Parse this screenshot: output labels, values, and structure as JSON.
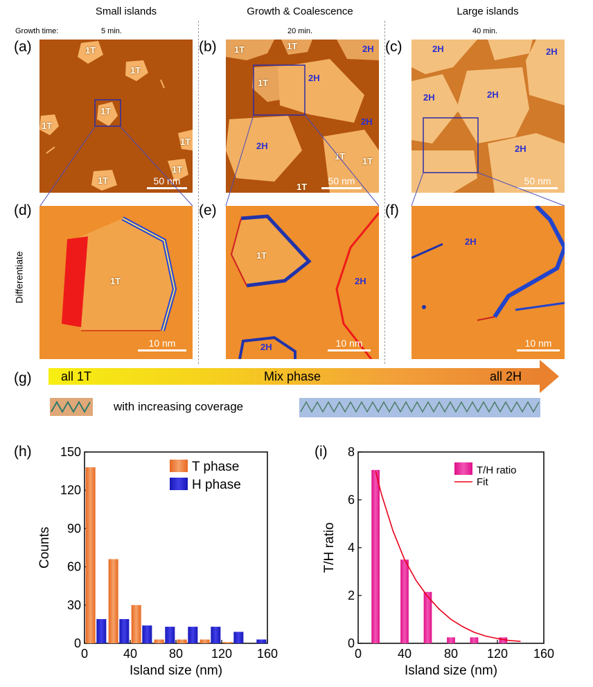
{
  "top": {
    "titles": [
      "Small islands",
      "Growth & Coalescence",
      "Large islands"
    ],
    "growth_time_label": "Growth time:",
    "times": [
      "5 min.",
      "20 min.",
      "40 min."
    ]
  },
  "panels": {
    "a": "(a)",
    "b": "(b)",
    "c": "(c)",
    "d": "(d)",
    "e": "(e)",
    "f": "(f)",
    "g": "(g)",
    "h": "(h)",
    "i": "(i)"
  },
  "side_label": "Differentiate",
  "labels": {
    "t1": "1T",
    "h2": "2H"
  },
  "scalebars": {
    "s50": "50 nm",
    "s10": "10 nm"
  },
  "phase_bar": {
    "left": "all 1T",
    "middle": "Mix phase",
    "right": "all 2H",
    "caption": "with increasing coverage"
  },
  "colors": {
    "t_phase": "#f4a26a",
    "h_phase": "#3f3ee8",
    "ratio": "#f255b3",
    "fit": "#e8001b"
  },
  "chart_data": [
    {
      "type": "bar",
      "xlabel": "Island size (nm)",
      "ylabel": "Counts",
      "xlim": [
        0,
        160
      ],
      "ylim": [
        0,
        150
      ],
      "xticks": [
        0,
        40,
        80,
        120,
        160
      ],
      "yticks": [
        0,
        30,
        60,
        90,
        120,
        150
      ],
      "legend": "top-right",
      "x": [
        10,
        30,
        50,
        70,
        90,
        110,
        130,
        150
      ],
      "series": [
        {
          "name": "T phase",
          "values": [
            138,
            66,
            30,
            3,
            3,
            3,
            1,
            0
          ]
        },
        {
          "name": "H phase",
          "values": [
            19,
            19,
            14,
            13,
            13,
            13,
            9,
            3
          ]
        }
      ]
    },
    {
      "type": "bar",
      "xlabel": "Island size (nm)",
      "ylabel": "T/H ratio",
      "xlim": [
        0,
        160
      ],
      "ylim": [
        0,
        8
      ],
      "xticks": [
        0,
        40,
        80,
        120,
        160
      ],
      "yticks": [
        0,
        2,
        4,
        6,
        8
      ],
      "legend": "top-right",
      "x": [
        15,
        40,
        60,
        80,
        100,
        125
      ],
      "series": [
        {
          "name": "T/H ratio",
          "values": [
            7.25,
            3.5,
            2.15,
            0.25,
            0.25,
            0.25
          ]
        }
      ],
      "fit": {
        "name": "Fit",
        "x": [
          15,
          20,
          30,
          40,
          50,
          60,
          70,
          80,
          90,
          100,
          110,
          120,
          130,
          140
        ],
        "y": [
          7.2,
          6.25,
          4.7,
          3.5,
          2.62,
          1.95,
          1.42,
          1.0,
          0.7,
          0.46,
          0.3,
          0.2,
          0.12,
          0.08
        ]
      }
    }
  ]
}
